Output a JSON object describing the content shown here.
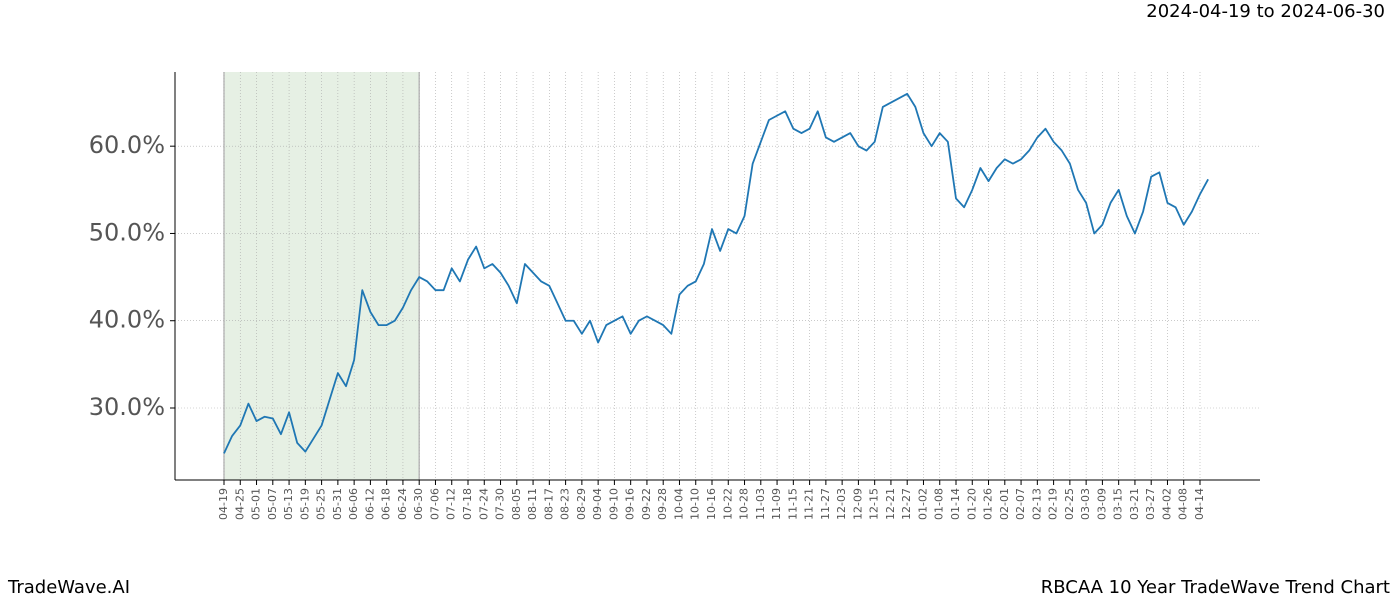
{
  "chart_data": {
    "type": "line",
    "title": "2024-04-19 to 2024-06-30",
    "footer_left": "TradeWave.AI",
    "footer_right": "RBCAA 10 Year TradeWave Trend Chart",
    "categories": [
      "04-19",
      null,
      "04-25",
      null,
      "05-01",
      null,
      "05-07",
      null,
      "05-13",
      null,
      "05-19",
      null,
      "05-25",
      null,
      "05-31",
      null,
      "06-06",
      null,
      "06-12",
      null,
      "06-18",
      null,
      "06-24",
      null,
      "06-30",
      null,
      "07-06",
      null,
      "07-12",
      null,
      "07-18",
      null,
      "07-24",
      null,
      "07-30",
      null,
      "08-05",
      null,
      "08-11",
      null,
      "08-17",
      null,
      "08-23",
      null,
      "08-29",
      null,
      "09-04",
      null,
      "09-10",
      null,
      "09-16",
      null,
      "09-22",
      null,
      "09-28",
      null,
      "10-04",
      null,
      "10-10",
      null,
      "10-16",
      null,
      "10-22",
      null,
      "10-28",
      null,
      "11-03",
      null,
      "11-09",
      null,
      "11-15",
      null,
      "11-21",
      null,
      "11-27",
      null,
      "12-03",
      null,
      "12-09",
      null,
      "12-15",
      null,
      "12-21",
      null,
      "12-27",
      null,
      "01-02",
      null,
      "01-08",
      null,
      "01-14",
      null,
      "01-20",
      null,
      "01-26",
      null,
      "02-01",
      null,
      "02-07",
      null,
      "02-13",
      null,
      "02-19",
      null,
      "02-25",
      null,
      "03-03",
      null,
      "03-09",
      null,
      "03-15",
      null,
      "03-21",
      null,
      "03-27",
      null,
      "04-02",
      null,
      "04-08",
      null,
      "04-14",
      null
    ],
    "series": [
      {
        "color": "#1f77b4",
        "values": [
          24.8,
          26.8,
          28,
          30.5,
          28.5,
          29,
          28.8,
          27,
          29.5,
          26,
          25,
          26.5,
          28,
          31,
          34,
          32.5,
          35.5,
          43.5,
          41,
          39.5,
          39.5,
          40,
          41.5,
          43.5,
          45,
          44.5,
          43.5,
          43.5,
          46,
          44.5,
          47,
          48.5,
          46,
          46.5,
          45.5,
          44,
          42,
          46.5,
          45.5,
          44.5,
          44,
          42,
          40,
          40,
          38.5,
          40,
          37.5,
          39.5,
          40,
          40.5,
          38.5,
          40,
          40.5,
          40,
          39.5,
          38.5,
          43,
          44,
          44.5,
          46.5,
          50.5,
          48,
          50.5,
          50,
          52,
          58,
          60.5,
          63,
          63.5,
          64,
          62,
          61.5,
          62,
          64,
          61,
          60.5,
          61,
          61.5,
          60,
          59.5,
          60.5,
          64.5,
          65,
          65.5,
          66,
          64.5,
          61.5,
          60,
          61.5,
          60.5,
          54,
          53,
          55,
          57.5,
          56,
          57.5,
          58.5,
          58,
          58.5,
          59.5,
          61,
          62,
          60.5,
          59.5,
          58,
          55,
          53.5,
          50,
          51,
          53.5,
          55,
          52,
          50,
          52.5,
          56.5,
          57,
          53.5,
          53,
          51,
          52.5,
          54.5,
          56.2
        ]
      }
    ],
    "ylim": [
      21.75,
      68.5
    ],
    "yticks": [
      {
        "value": 30,
        "label": "30.0%"
      },
      {
        "value": 40,
        "label": "40.0%"
      },
      {
        "value": 50,
        "label": "50.0%"
      },
      {
        "value": 60,
        "label": "60.0%"
      }
    ],
    "shade_color": "#e6f0e4",
    "grid": true
  }
}
